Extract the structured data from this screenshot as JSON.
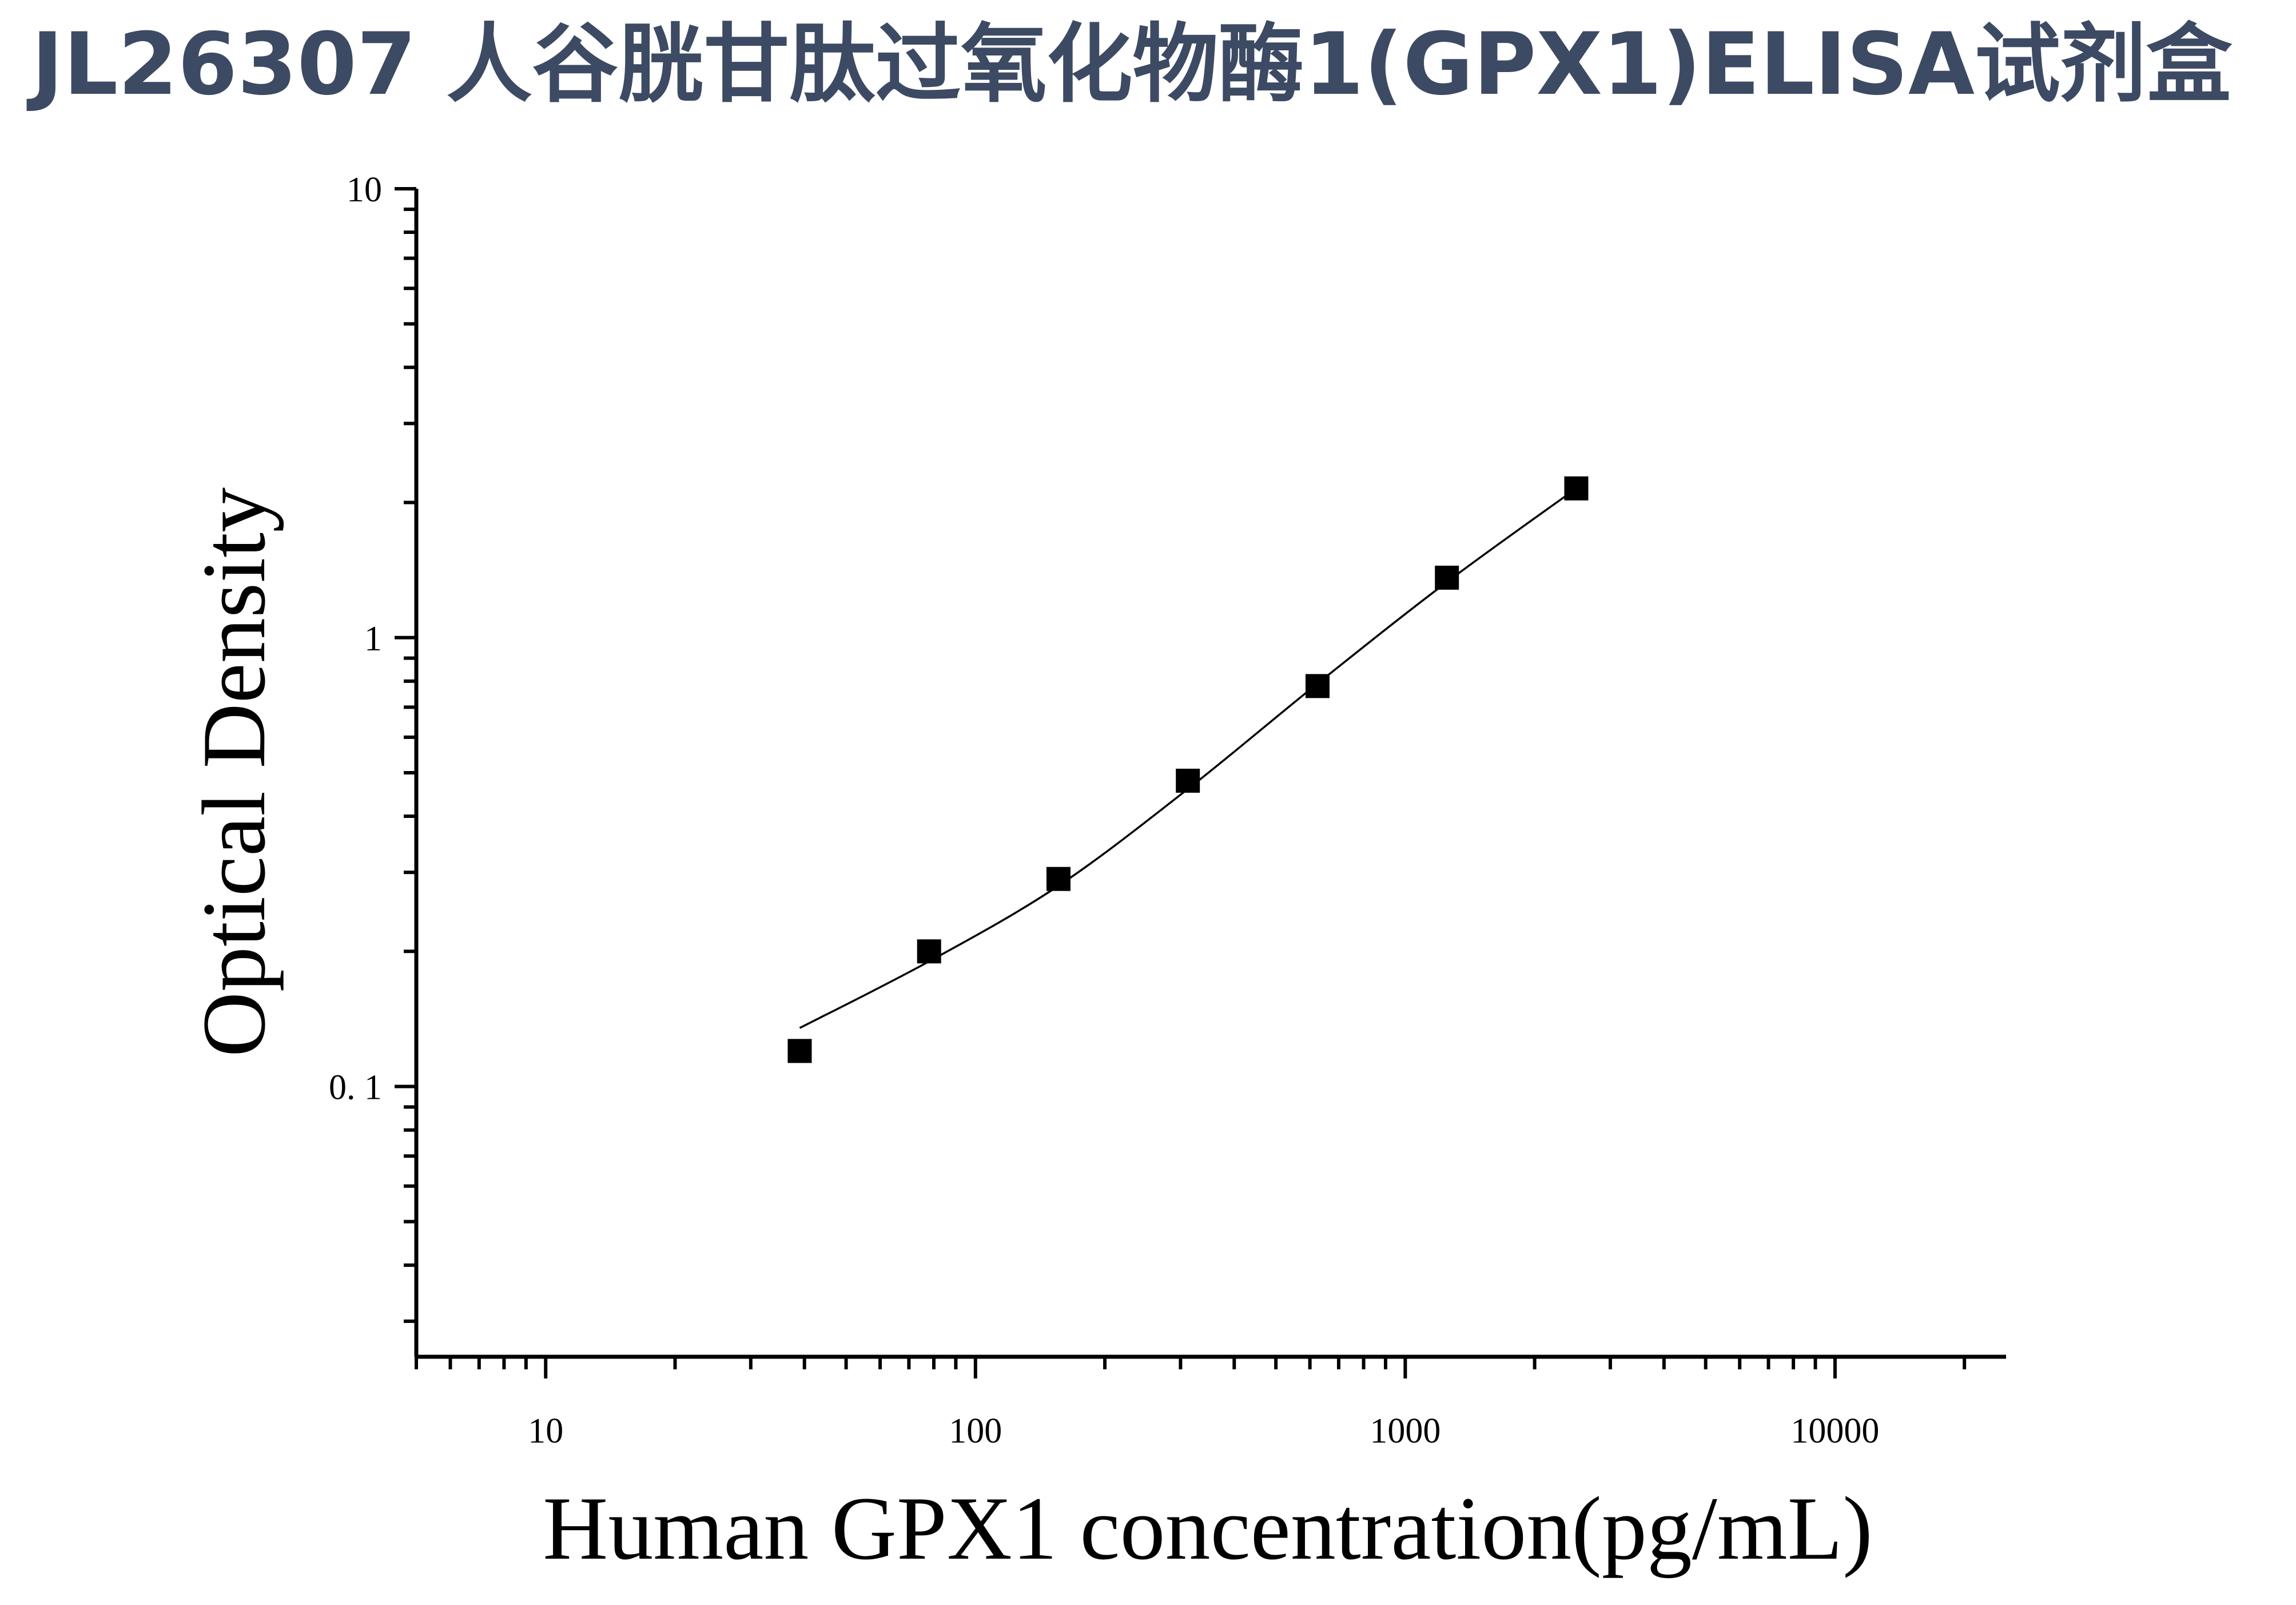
{
  "title": "JL26307 人谷胱甘肽过氧化物酶1(GPX1)ELISA试剂盒",
  "colors": {
    "title": "#3d4a63",
    "axis": "#000000",
    "marker": "#000000",
    "curve": "#000000"
  },
  "chart_data": {
    "type": "scatter",
    "xlabel": "Human GPX1 concentration(pg/mL)",
    "ylabel": "Optical Density",
    "xscale": "log",
    "yscale": "log",
    "xlim": [
      5,
      25000
    ],
    "ylim": [
      0.025,
      10
    ],
    "x_tick_labels": [
      "10",
      "100",
      "1000",
      "10000"
    ],
    "y_tick_labels": [
      "10",
      "1",
      "0. 1"
    ],
    "grid": false,
    "legend": "none",
    "marker": "square",
    "series": [
      {
        "x": [
          39,
          78,
          156,
          312,
          625,
          1250,
          2500
        ],
        "y": [
          0.12,
          0.2,
          0.29,
          0.48,
          0.78,
          1.36,
          2.15
        ]
      }
    ],
    "fit_curve": {
      "x": [
        39,
        78,
        156,
        312,
        625,
        1250,
        2500
      ],
      "y": [
        0.135,
        0.19,
        0.28,
        0.46,
        0.79,
        1.33,
        2.15
      ]
    }
  }
}
